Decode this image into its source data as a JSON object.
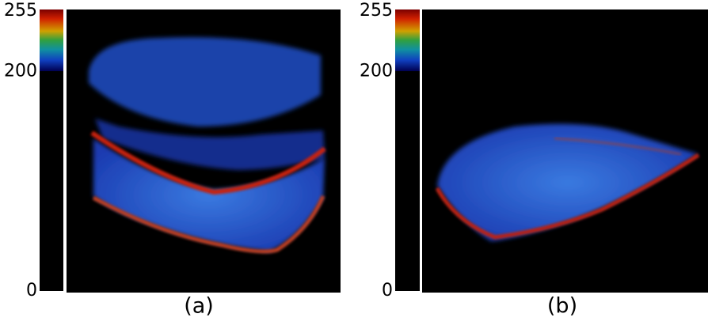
{
  "panels": [
    {
      "caption": "(a)",
      "colorbar_ticks": [
        255,
        200,
        0
      ]
    },
    {
      "caption": "(b)",
      "colorbar_ticks": [
        255,
        200,
        0
      ]
    }
  ]
}
